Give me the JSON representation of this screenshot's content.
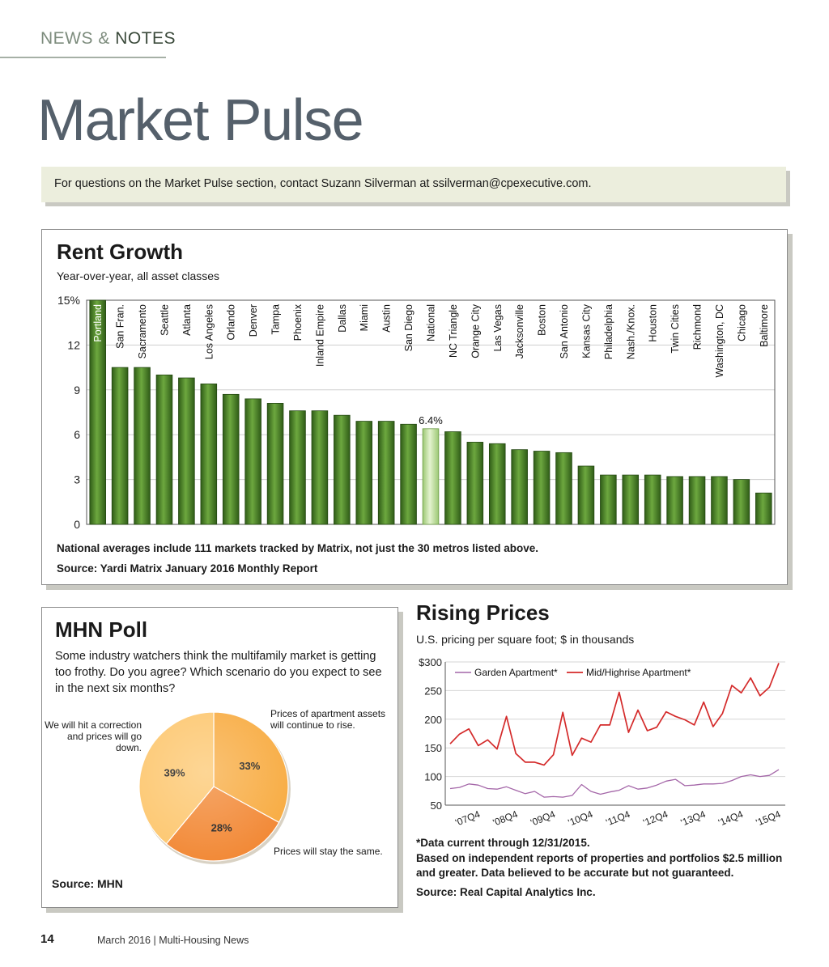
{
  "header": {
    "section_part1": "NEWS & ",
    "section_part2": "NOTES",
    "page_title": "Market Pulse"
  },
  "contact_banner": "For questions on the Market Pulse section, contact Suzann Silverman at ssilverman@cpexecutive.com.",
  "rent_growth": {
    "title": "Rent Growth",
    "subtitle": "Year-over-year, all asset classes",
    "note": "National averages include 111 markets tracked by Matrix, not just the 30 metros listed above.",
    "source": "Source: Yardi Matrix January 2016 Monthly Report"
  },
  "mhn_poll": {
    "title": "MHN Poll",
    "question": "Some industry watchers think the multifamily market is getting too frothy. Do you agree? Which scenario do you expect to see in the next six months?",
    "label_correction": "We will hit a correction and prices will go down.",
    "label_rise": "Prices of apartment assets will continue to rise.",
    "label_same": "Prices will stay the same.",
    "source": "Source: MHN"
  },
  "rising_prices": {
    "title": "Rising Prices",
    "subtitle": "U.S. pricing per square foot; $ in thousands",
    "note_1": "*Data current through 12/31/2015.",
    "note_2": "Based on independent reports of properties and portfolios $2.5 million and greater. Data believed to be accurate but not guaranteed.",
    "source": "Source: Real Capital Analytics Inc."
  },
  "footer": {
    "page_number": "14",
    "text": "March 2016 | Multi-Housing News"
  },
  "colors": {
    "bar_green": "#4e8a2a",
    "bar_highlight": "#b8d98f",
    "garden_line": "#a466a8",
    "midrise_line": "#d42a2a",
    "pie_light": "#fdc872",
    "pie_mid": "#f8ad45",
    "pie_dark": "#f28a38"
  },
  "chart_data": [
    {
      "type": "bar",
      "title": "Rent Growth",
      "ylim": [
        0,
        15
      ],
      "yticks": [
        0,
        3,
        6,
        9,
        12,
        15
      ],
      "ytick_labels": [
        "0",
        "3",
        "6",
        "9",
        "12",
        "15%"
      ],
      "grid": true,
      "highlight_category": "National",
      "highlight_label": "6.4%",
      "categories": [
        "Portland",
        "San Fran.",
        "Sacramento",
        "Seattle",
        "Atlanta",
        "Los Angeles",
        "Orlando",
        "Denver",
        "Tampa",
        "Phoenix",
        "Inland Empire",
        "Dallas",
        "Miami",
        "Austin",
        "San Diego",
        "National",
        "NC Triangle",
        "Orange City",
        "Las Vegas",
        "Jacksonville",
        "Boston",
        "San Antonio",
        "Kansas City",
        "Philadelphia",
        "Nash./Knox.",
        "Houston",
        "Twin Cities",
        "Richmond",
        "Washington, DC",
        "Chicago",
        "Baltimore"
      ],
      "values": [
        15.0,
        10.5,
        10.5,
        10.0,
        9.8,
        9.4,
        8.7,
        8.4,
        8.1,
        7.6,
        7.6,
        7.3,
        6.9,
        6.9,
        6.7,
        6.4,
        6.2,
        5.5,
        5.4,
        5.0,
        4.9,
        4.8,
        3.9,
        3.3,
        3.3,
        3.3,
        3.2,
        3.2,
        3.2,
        3.0,
        2.1
      ]
    },
    {
      "type": "pie",
      "title": "MHN Poll",
      "slices": [
        {
          "label": "Prices of apartment assets will continue to rise.",
          "value": 33,
          "display": "33%"
        },
        {
          "label": "Prices will stay the same.",
          "value": 28,
          "display": "28%"
        },
        {
          "label": "We will hit a correction and prices will go down.",
          "value": 39,
          "display": "39%"
        }
      ]
    },
    {
      "type": "line",
      "title": "Rising Prices",
      "ylim": [
        50,
        300
      ],
      "yticks": [
        50,
        100,
        150,
        200,
        250,
        300
      ],
      "ytick_labels": [
        "50",
        "100",
        "150",
        "200",
        "250",
        "$300"
      ],
      "x_tick_labels": [
        "'07Q4",
        "'08Q4",
        "'09Q4",
        "'10Q4",
        "'11Q4",
        "'12Q4",
        "'13Q4",
        "'14Q4",
        "'15Q4"
      ],
      "grid": true,
      "legend_position": "top",
      "series": [
        {
          "name": "Garden Apartment*",
          "values": [
            79,
            81,
            87,
            85,
            79,
            78,
            82,
            76,
            70,
            74,
            64,
            65,
            64,
            67,
            86,
            74,
            69,
            73,
            76,
            84,
            78,
            80,
            85,
            92,
            95,
            84,
            85,
            87,
            87,
            88,
            93,
            100,
            103,
            100,
            102,
            112
          ]
        },
        {
          "name": "Mid/Highrise Apartment*",
          "values": [
            157,
            174,
            183,
            154,
            164,
            148,
            205,
            140,
            125,
            125,
            120,
            138,
            212,
            137,
            167,
            160,
            190,
            190,
            247,
            177,
            216,
            180,
            186,
            213,
            205,
            199,
            190,
            230,
            187,
            210,
            259,
            246,
            272,
            241,
            256,
            298
          ]
        }
      ]
    }
  ]
}
